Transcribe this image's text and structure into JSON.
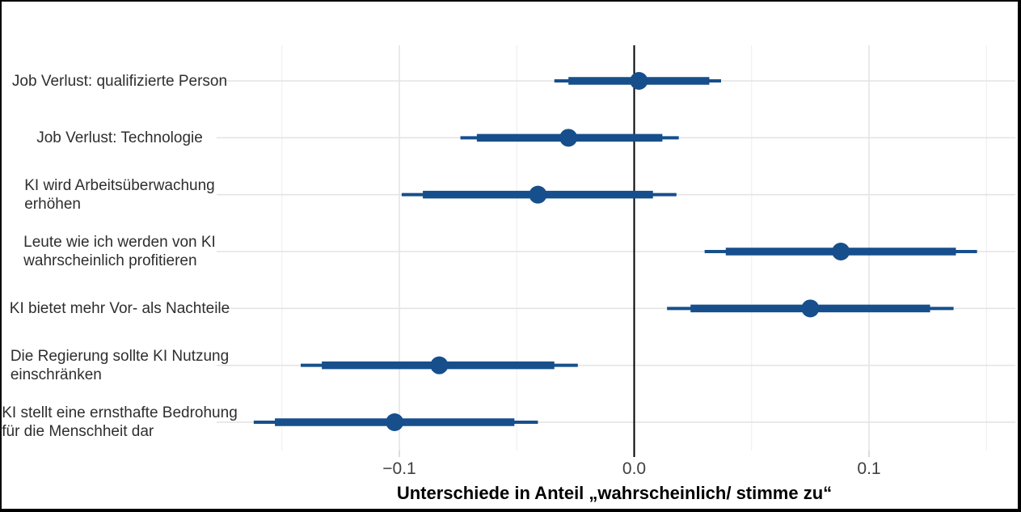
{
  "chart_data": {
    "type": "scatter",
    "subtype": "dot-and-whisker coefficient plot",
    "title": "",
    "xlabel": "Unterschiede in Anteil „wahrscheinlich/ stimme zu“",
    "ylabel": "",
    "xlim": [
      -0.178,
      0.162
    ],
    "x_major_ticks": {
      "values": [
        -0.1,
        0.0,
        0.1
      ],
      "labels": [
        "−0.1",
        "0.0",
        "0.1"
      ]
    },
    "x_minor_gridlines": [
      -0.15,
      -0.05,
      0.05,
      0.15
    ],
    "zero_reference_line": 0.0,
    "grid": "vertical major+minor gridlines, horizontal gridline per category",
    "legend": "none",
    "rows": [
      {
        "label": "Job Verlust: qualifizierte Person",
        "label_lines": [
          "Job Verlust: qualifizierte Person"
        ],
        "estimate": 0.002,
        "ci_inner": [
          -0.028,
          0.032
        ],
        "ci_outer": [
          -0.034,
          0.037
        ]
      },
      {
        "label": "Job Verlust: Technologie",
        "label_lines": [
          "Job Verlust: Technologie"
        ],
        "estimate": -0.028,
        "ci_inner": [
          -0.067,
          0.012
        ],
        "ci_outer": [
          -0.074,
          0.019
        ]
      },
      {
        "label": "KI wird Arbeitsüberwachung erhöhen",
        "label_lines": [
          "KI wird Arbeitsüberwachung",
          "erhöhen"
        ],
        "estimate": -0.041,
        "ci_inner": [
          -0.09,
          0.008
        ],
        "ci_outer": [
          -0.099,
          0.018
        ]
      },
      {
        "label": "Leute wie ich werden von KI wahrscheinlich profitieren",
        "label_lines": [
          "Leute wie ich werden von KI",
          "wahrscheinlich profitieren"
        ],
        "estimate": 0.088,
        "ci_inner": [
          0.039,
          0.137
        ],
        "ci_outer": [
          0.03,
          0.146
        ]
      },
      {
        "label": "KI bietet mehr Vor- als Nachteile",
        "label_lines": [
          "KI bietet mehr Vor- als Nachteile"
        ],
        "estimate": 0.075,
        "ci_inner": [
          0.024,
          0.126
        ],
        "ci_outer": [
          0.014,
          0.136
        ]
      },
      {
        "label": "Die Regierung sollte KI Nutzung einschränken",
        "label_lines": [
          "Die Regierung sollte KI Nutzung",
          "einschränken"
        ],
        "estimate": -0.083,
        "ci_inner": [
          -0.133,
          -0.034
        ],
        "ci_outer": [
          -0.142,
          -0.024
        ]
      },
      {
        "label": "KI stellt eine ernsthafte Bedrohung für die Menschheit dar",
        "label_lines": [
          "KI stellt eine ernsthafte Bedrohung",
          "für die Menschheit dar"
        ],
        "estimate": -0.102,
        "ci_inner": [
          -0.153,
          -0.051
        ],
        "ci_outer": [
          -0.162,
          -0.041
        ]
      }
    ],
    "colors": {
      "point_and_interval": "#164f8c",
      "zero_line": "#000000",
      "grid_major": "#e4e4e4",
      "grid_minor": "#eeeeee",
      "axis_tick": "#cfcfcf",
      "tick_label": "#404040",
      "category_label": "#2e2e2e",
      "figure_border": "#000000",
      "background": "#ffffff"
    }
  }
}
